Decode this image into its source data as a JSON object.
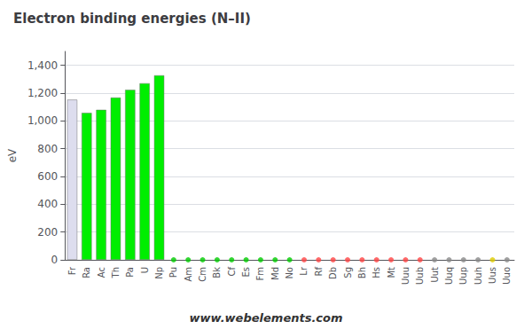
{
  "chart_data": {
    "type": "bar",
    "title": "Electron binding energies (N–II)",
    "ylabel": "eV",
    "categories": [
      "Fr",
      "Ra",
      "Ac",
      "Th",
      "Pa",
      "U",
      "Np",
      "Pu",
      "Am",
      "Cm",
      "Bk",
      "Cf",
      "Es",
      "Fm",
      "Md",
      "No",
      "Lr",
      "Rf",
      "Db",
      "Sg",
      "Bh",
      "Hs",
      "Mt",
      "Uuu",
      "Uub",
      "Uut",
      "Uuq",
      "Uup",
      "Uuh",
      "Uus",
      "Uuo"
    ],
    "values": [
      1153,
      1058,
      1080,
      1168,
      1224,
      1271,
      1328,
      0,
      0,
      0,
      0,
      0,
      0,
      0,
      0,
      0,
      0,
      0,
      0,
      0,
      0,
      0,
      0,
      0,
      0,
      0,
      0,
      0,
      0,
      0,
      0
    ],
    "colors": [
      "#ddddee",
      "#00ee00",
      "#00ee00",
      "#00ee00",
      "#00ee00",
      "#00ee00",
      "#00ee00",
      "#00cc00",
      "#00cc00",
      "#00cc00",
      "#00cc00",
      "#00cc00",
      "#00cc00",
      "#00cc00",
      "#00cc00",
      "#00cc00",
      "#ff4444",
      "#ff4444",
      "#ff4444",
      "#ff4444",
      "#ff4444",
      "#ff4444",
      "#ff4444",
      "#ff4444",
      "#ff4444",
      "#888888",
      "#888888",
      "#888888",
      "#888888",
      "#ddcc00",
      "#888888"
    ],
    "ylim": [
      0,
      1500
    ],
    "yticks": [
      0,
      200,
      400,
      600,
      800,
      {
        "value": 1000,
        "label": "1,000"
      },
      {
        "value": 1200,
        "label": "1,200"
      },
      {
        "value": 1400,
        "label": "1,400"
      }
    ],
    "grid": true,
    "annotation": "www.webelements.com"
  }
}
